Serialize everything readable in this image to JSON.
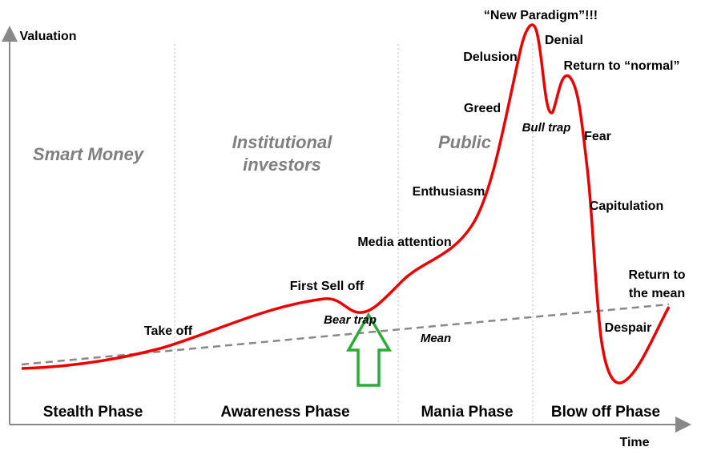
{
  "axes": {
    "y_label": "Valuation",
    "x_label": "Time"
  },
  "groups": [
    {
      "lines": [
        "Smart Money"
      ]
    },
    {
      "lines": [
        "Institutional",
        "investors"
      ]
    },
    {
      "lines": [
        "Public"
      ]
    }
  ],
  "phases": [
    "Stealth Phase",
    "Awareness Phase",
    "Mania Phase",
    "Blow off Phase"
  ],
  "annotations": [
    "Take off",
    "First Sell off",
    "Bear trap",
    "Media attention",
    "Enthusiasm",
    "Greed",
    "Delusion",
    "“New Paradigm”!!!",
    "Denial",
    "Return to “normal”",
    "Bull trap",
    "Fear",
    "Capitulation",
    {
      "lines": [
        "Return to",
        "the mean"
      ]
    },
    "Despair",
    "Mean"
  ]
}
